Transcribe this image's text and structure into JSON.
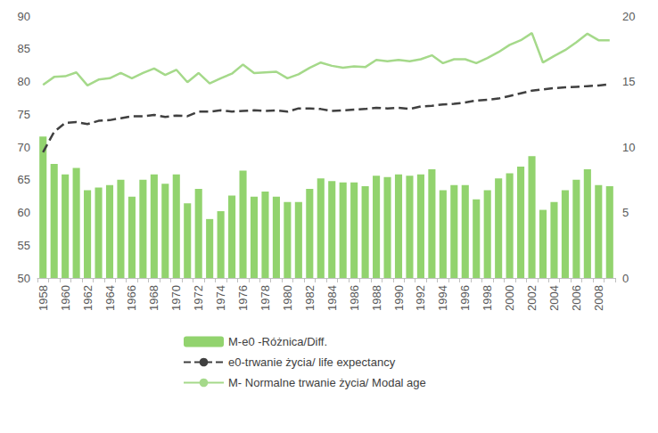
{
  "chart_data": {
    "type": "bar",
    "categories": [
      "1958",
      null,
      "1960",
      null,
      "1962",
      null,
      "1964",
      null,
      "1966",
      null,
      "1968",
      null,
      "1970",
      null,
      "1972",
      null,
      "1974",
      null,
      "1976",
      null,
      "1978",
      null,
      "1980",
      null,
      "1982",
      null,
      "1984",
      null,
      "1986",
      null,
      "1988",
      null,
      "1990",
      null,
      "1992",
      null,
      "1994",
      null,
      "1996",
      null,
      "1998",
      null,
      "2000",
      null,
      "2002",
      null,
      "2004",
      null,
      "2006",
      null,
      "2008",
      null
    ],
    "series": [
      {
        "name": "M-e0 -Różnica/Diff.",
        "type": "bar",
        "axis": "y2",
        "color": "#92d36e",
        "values": [
          10.8,
          8.7,
          7.9,
          8.4,
          6.7,
          6.9,
          7.1,
          7.5,
          6.2,
          7.5,
          7.9,
          7.2,
          7.9,
          5.7,
          6.8,
          4.5,
          5.1,
          6.3,
          8.2,
          6.2,
          6.6,
          6.2,
          5.8,
          5.8,
          6.8,
          7.6,
          7.4,
          7.3,
          7.3,
          7.0,
          7.8,
          7.7,
          7.9,
          7.8,
          7.9,
          8.3,
          6.7,
          7.1,
          7.1,
          6.0,
          6.7,
          7.6,
          8.0,
          8.5,
          9.3,
          5.2,
          5.8,
          6.7,
          7.5,
          8.3,
          7.1,
          7.0
        ]
      },
      {
        "name": "e0-trwanie życia/ life expectancy",
        "type": "line",
        "line_style": "dashed",
        "color": "#404040",
        "values": [
          69.2,
          72.3,
          73.7,
          73.8,
          73.5,
          74.0,
          74.1,
          74.4,
          74.7,
          74.7,
          74.9,
          74.6,
          74.8,
          74.7,
          75.4,
          75.4,
          75.6,
          75.4,
          75.5,
          75.6,
          75.5,
          75.6,
          75.4,
          75.9,
          75.9,
          75.8,
          75.5,
          75.6,
          75.7,
          75.8,
          76.0,
          75.9,
          76.0,
          75.8,
          76.2,
          76.3,
          76.5,
          76.6,
          76.8,
          77.1,
          77.2,
          77.4,
          77.8,
          78.2,
          78.6,
          78.8,
          79.0,
          79.1,
          79.2,
          79.3,
          79.4,
          79.6
        ]
      },
      {
        "name": "M- Normalne trwanie życia/ Modal age",
        "type": "line",
        "line_style": "solid",
        "color": "#a5d98a",
        "values": [
          79.5,
          80.7,
          80.8,
          81.4,
          79.4,
          80.3,
          80.5,
          81.3,
          80.5,
          81.3,
          82.0,
          81.0,
          81.8,
          79.9,
          81.3,
          79.7,
          80.5,
          81.2,
          82.6,
          81.3,
          81.4,
          81.5,
          80.5,
          81.1,
          82.1,
          82.9,
          82.4,
          82.1,
          82.3,
          82.2,
          83.3,
          83.1,
          83.3,
          83.1,
          83.4,
          84.0,
          82.8,
          83.4,
          83.4,
          82.8,
          83.6,
          84.5,
          85.6,
          86.3,
          87.4,
          82.9,
          83.9,
          84.8,
          86.0,
          87.3,
          86.3,
          86.3
        ]
      }
    ],
    "ylim": [
      50,
      90
    ],
    "yticks": [
      50,
      55,
      60,
      65,
      70,
      75,
      80,
      85,
      90
    ],
    "y2lim": [
      0,
      20
    ],
    "y2ticks": [
      0,
      5,
      10,
      15,
      20
    ],
    "grid": false,
    "legend": "bottom"
  }
}
